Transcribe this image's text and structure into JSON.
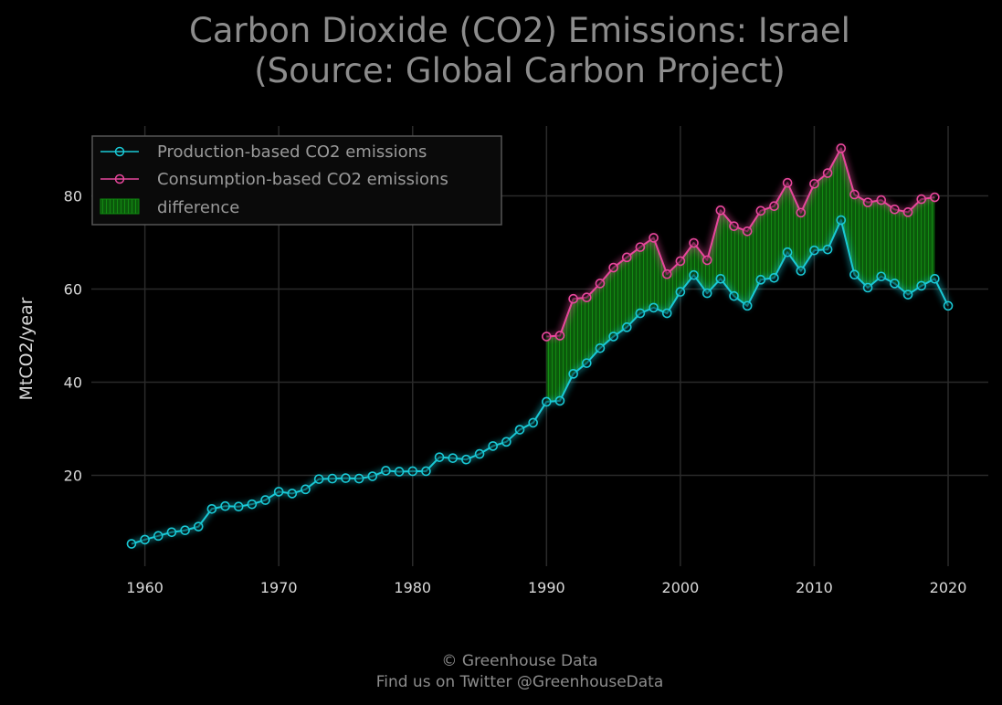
{
  "chart_data": {
    "type": "line",
    "title_line1": "Carbon Dioxide (CO2) Emissions: Israel",
    "title_line2": "(Source: Global Carbon Project)",
    "xlabel": "",
    "ylabel": "MtCO2/year",
    "xlim": [
      1956,
      2023
    ],
    "ylim": [
      0.5,
      95
    ],
    "x_ticks": [
      1960,
      1970,
      1980,
      1990,
      2000,
      2010,
      2020
    ],
    "y_ticks": [
      20,
      40,
      60,
      80
    ],
    "grid": true,
    "legend_position": "top-left",
    "legend": [
      {
        "label": "Production-based CO2 emissions",
        "color": "#19c9d6"
      },
      {
        "label": "Consumption-based CO2 emissions",
        "color": "#e8479c"
      },
      {
        "label": "difference",
        "color": "#0b6b0b"
      }
    ],
    "series": [
      {
        "name": "Production-based CO2 emissions",
        "color": "#19c9d6",
        "x": [
          1959,
          1960,
          1961,
          1962,
          1963,
          1964,
          1965,
          1966,
          1967,
          1968,
          1969,
          1970,
          1971,
          1972,
          1973,
          1974,
          1975,
          1976,
          1977,
          1978,
          1979,
          1980,
          1981,
          1982,
          1983,
          1984,
          1985,
          1986,
          1987,
          1988,
          1989,
          1990,
          1991,
          1992,
          1993,
          1994,
          1995,
          1996,
          1997,
          1998,
          1999,
          2000,
          2001,
          2002,
          2003,
          2004,
          2005,
          2006,
          2007,
          2008,
          2009,
          2010,
          2011,
          2012,
          2013,
          2014,
          2015,
          2016,
          2017,
          2018,
          2019,
          2020
        ],
        "values": [
          5.3,
          6.2,
          7.0,
          7.8,
          8.2,
          9.0,
          12.8,
          13.4,
          13.3,
          13.8,
          14.7,
          16.5,
          16.1,
          17.0,
          19.2,
          19.3,
          19.4,
          19.3,
          19.8,
          21.0,
          20.8,
          20.9,
          20.9,
          23.9,
          23.7,
          23.4,
          24.6,
          26.3,
          27.2,
          29.8,
          31.3,
          35.8,
          36.0,
          41.8,
          44.1,
          47.3,
          49.8,
          51.8,
          54.8,
          56.0,
          54.8,
          59.4,
          63.0,
          59.1,
          62.2,
          58.5,
          56.4,
          62.0,
          62.4,
          67.9,
          63.9,
          68.3,
          68.5,
          74.8,
          63.1,
          60.3,
          62.7,
          61.2,
          58.8,
          60.7,
          62.2,
          56.4
        ]
      },
      {
        "name": "Consumption-based CO2 emissions",
        "color": "#e8479c",
        "x": [
          1990,
          1991,
          1992,
          1993,
          1994,
          1995,
          1996,
          1997,
          1998,
          1999,
          2000,
          2001,
          2002,
          2003,
          2004,
          2005,
          2006,
          2007,
          2008,
          2009,
          2010,
          2011,
          2012,
          2013,
          2014,
          2015,
          2016,
          2017,
          2018,
          2019
        ],
        "values": [
          49.8,
          50.0,
          57.9,
          58.2,
          61.2,
          64.6,
          66.8,
          69.0,
          71.0,
          63.2,
          66.0,
          69.9,
          66.2,
          76.9,
          73.5,
          72.4,
          76.8,
          77.8,
          82.8,
          76.4,
          82.6,
          84.9,
          90.2,
          80.3,
          78.6,
          79.1,
          77.1,
          76.5,
          79.3,
          79.7
        ]
      }
    ]
  },
  "footer": {
    "line1": "© Greenhouse Data",
    "line2": "Find us on Twitter @GreenhouseData"
  }
}
